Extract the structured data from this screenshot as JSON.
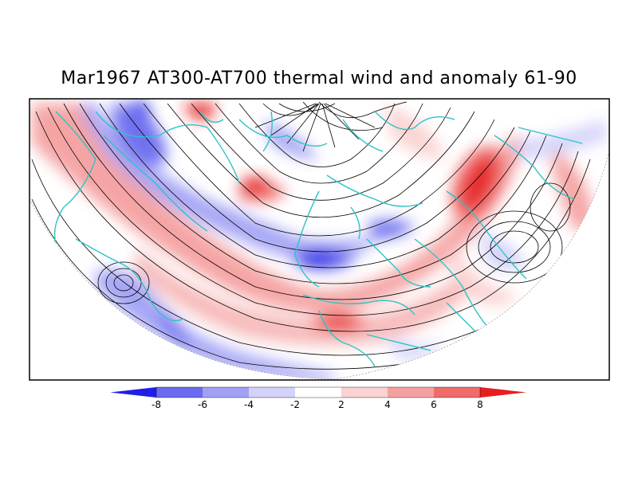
{
  "title": "Mar1967 AT300-AT700 thermal wind and anomaly 61-90",
  "colorbar": {
    "labels": [
      "-8",
      "-6",
      "-4",
      "-2",
      "2",
      "4",
      "6",
      "8"
    ],
    "colors": [
      "#1f1fe6",
      "#6b6bf0",
      "#a0a0f5",
      "#d2d2fa",
      "#ffffff",
      "#fad2d2",
      "#f5a0a0",
      "#f06b6b",
      "#e61f1f"
    ]
  },
  "colors": {
    "coastline": "#2cc4c4",
    "streamline": "#000000",
    "frame": "#000000"
  }
}
